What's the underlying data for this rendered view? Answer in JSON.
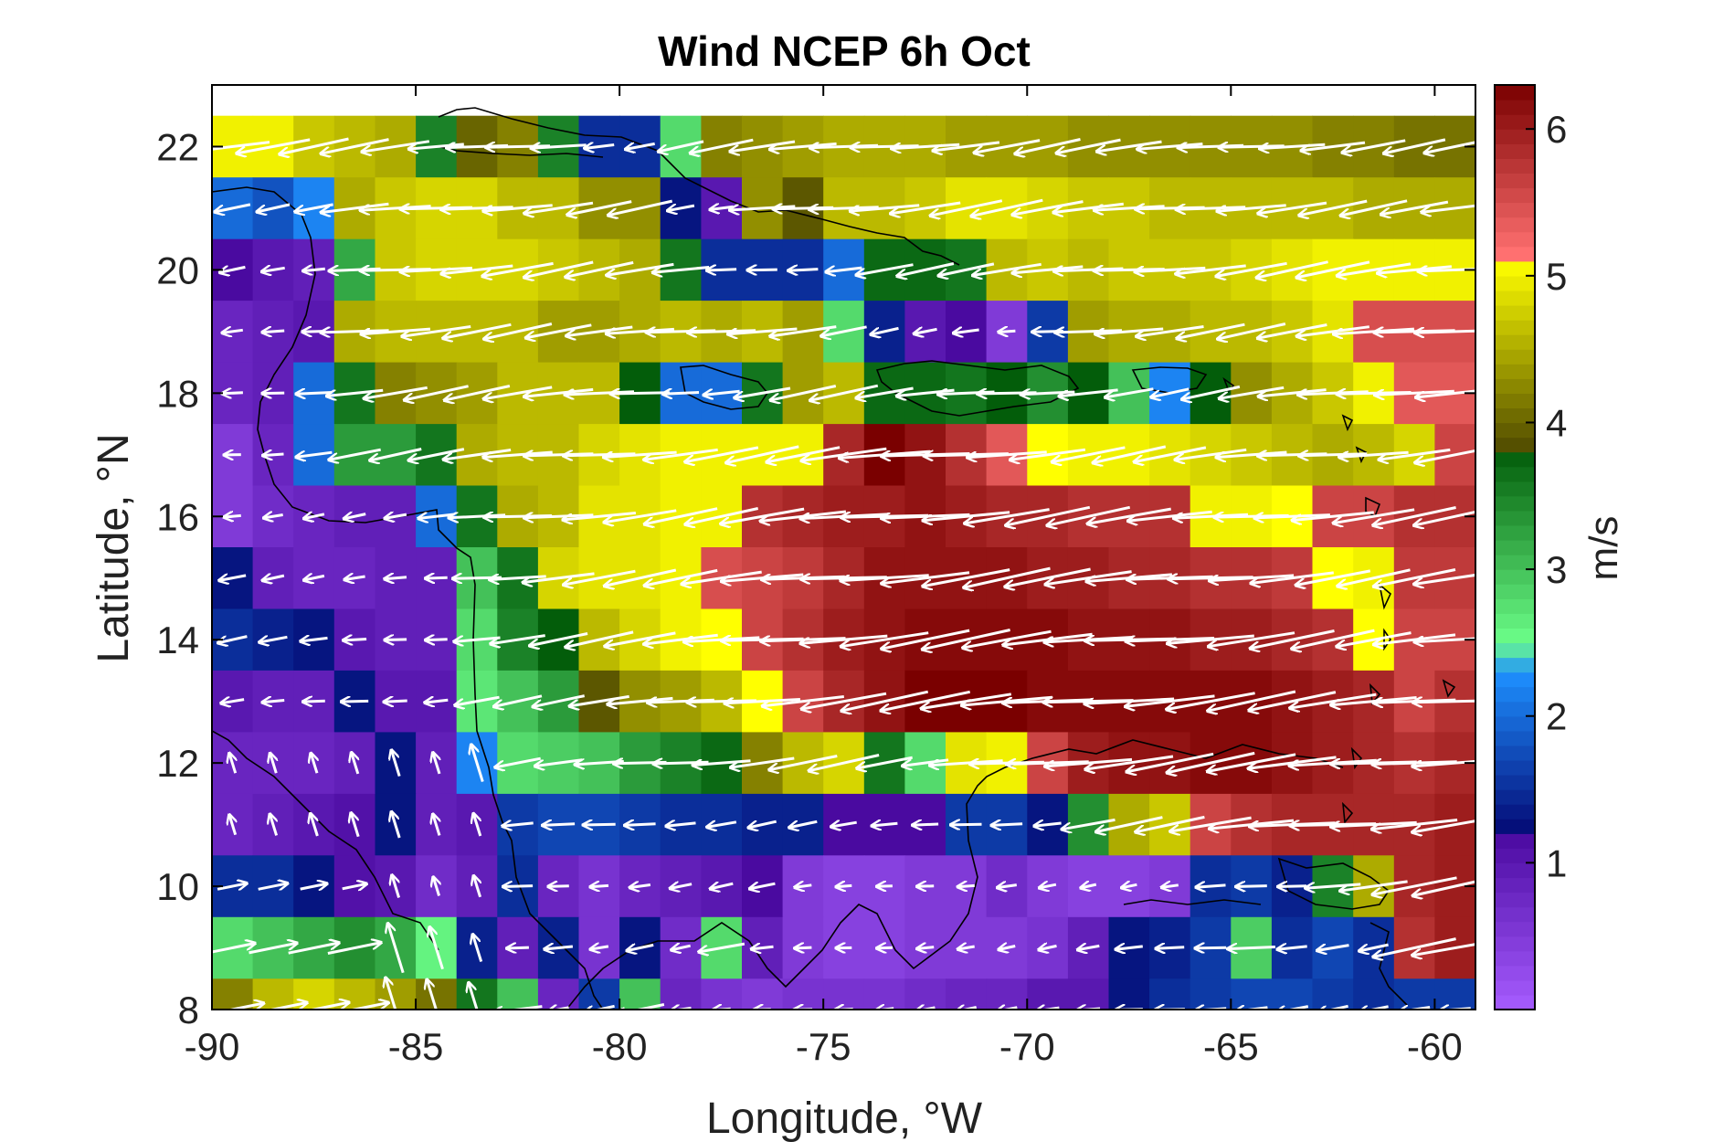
{
  "chart_data": {
    "type": "heatmap",
    "title": "Wind NCEP 6h Oct",
    "xlabel": "Longitude, °W",
    "ylabel": "Latitude, °N",
    "colorbar_label": "m/s",
    "xlim": [
      -90,
      -59
    ],
    "ylim": [
      8,
      23
    ],
    "xticks": [
      -90,
      -85,
      -80,
      -75,
      -70,
      -65,
      -60
    ],
    "xtick_labels": [
      "-90",
      "-85",
      "-80",
      "-75",
      "-70",
      "-65",
      "-60"
    ],
    "yticks": [
      8,
      10,
      12,
      14,
      16,
      18,
      20,
      22
    ],
    "ytick_labels": [
      "8",
      "10",
      "12",
      "14",
      "16",
      "18",
      "20",
      "22"
    ],
    "clim": [
      0,
      6.3
    ],
    "colorbar_ticks": [
      1,
      2,
      3,
      4,
      5,
      6
    ],
    "colorbar_tick_labels": [
      "1",
      "2",
      "3",
      "4",
      "5",
      "6"
    ],
    "colormap_stops": [
      {
        "value": 0.0,
        "color": "#a65cff"
      },
      {
        "value": 1.2,
        "color": "#4a0aa0"
      },
      {
        "value": 1.25,
        "color": "#050f7a"
      },
      {
        "value": 2.3,
        "color": "#1e90ff"
      },
      {
        "value": 2.5,
        "color": "#6cff8a"
      },
      {
        "value": 3.8,
        "color": "#035d0a"
      },
      {
        "value": 3.85,
        "color": "#555000"
      },
      {
        "value": 5.1,
        "color": "#ffff00"
      },
      {
        "value": 5.15,
        "color": "#ff7070"
      },
      {
        "value": 6.3,
        "color": "#7a0000"
      }
    ],
    "grid_lon_step": 1,
    "grid_lat_step": 1,
    "x": [
      -89.5,
      -88.5,
      -87.5,
      -86.5,
      -85.5,
      -84.5,
      -83.5,
      -82.5,
      -81.5,
      -80.5,
      -79.5,
      -78.5,
      -77.5,
      -76.5,
      -75.5,
      -74.5,
      -73.5,
      -72.5,
      -71.5,
      -70.5,
      -69.5,
      -68.5,
      -67.5,
      -66.5,
      -65.5,
      -64.5,
      -63.5,
      -62.5,
      -61.5,
      -60.5,
      -59.5
    ],
    "y": [
      22,
      21,
      20,
      19,
      18,
      17,
      16,
      15,
      14,
      13,
      12,
      11,
      10,
      9,
      8
    ],
    "values": [
      [
        5.0,
        5.0,
        4.7,
        4.6,
        4.5,
        3.5,
        4.0,
        4.2,
        3.5,
        1.5,
        1.5,
        2.8,
        4.2,
        4.3,
        4.4,
        4.5,
        4.5,
        4.5,
        4.4,
        4.4,
        4.4,
        4.3,
        4.3,
        4.3,
        4.3,
        4.3,
        4.3,
        4.2,
        4.2,
        4.1,
        4.1
      ],
      [
        2.0,
        1.8,
        2.2,
        4.5,
        4.7,
        4.8,
        4.8,
        4.6,
        4.6,
        4.3,
        4.3,
        1.3,
        1.0,
        4.3,
        3.9,
        4.6,
        4.6,
        4.7,
        4.9,
        4.9,
        4.8,
        4.7,
        4.7,
        4.6,
        4.6,
        4.6,
        4.6,
        4.6,
        4.5,
        4.5,
        4.5
      ],
      [
        1.2,
        1.0,
        0.9,
        3.2,
        4.7,
        4.8,
        4.8,
        4.8,
        4.7,
        4.6,
        4.5,
        3.6,
        1.5,
        1.5,
        1.5,
        2.0,
        3.7,
        3.7,
        3.6,
        4.6,
        4.7,
        4.6,
        4.7,
        4.7,
        4.7,
        4.8,
        4.9,
        5.0,
        5.0,
        5.0,
        5.0
      ],
      [
        0.8,
        0.9,
        1.0,
        4.5,
        4.6,
        4.6,
        4.6,
        4.6,
        4.4,
        4.4,
        4.5,
        4.6,
        4.5,
        4.6,
        4.4,
        2.8,
        1.4,
        1.0,
        1.2,
        0.5,
        1.6,
        4.4,
        4.5,
        4.5,
        4.6,
        4.6,
        4.7,
        4.9,
        5.5,
        5.5,
        5.5
      ],
      [
        0.8,
        0.9,
        2.0,
        3.6,
        4.2,
        4.3,
        4.4,
        4.6,
        4.6,
        4.6,
        3.8,
        2.0,
        2.0,
        3.6,
        4.4,
        4.6,
        3.7,
        3.7,
        3.6,
        3.8,
        3.4,
        3.8,
        3.0,
        2.2,
        3.8,
        4.3,
        4.5,
        4.7,
        5.0,
        5.4,
        5.4
      ],
      [
        0.5,
        0.8,
        2.0,
        3.3,
        3.3,
        3.6,
        4.5,
        4.6,
        4.6,
        4.8,
        4.9,
        5.0,
        5.0,
        5.0,
        5.0,
        5.9,
        6.3,
        6.1,
        5.8,
        5.4,
        5.1,
        5.0,
        5.0,
        4.9,
        4.8,
        4.7,
        4.6,
        4.5,
        4.6,
        4.8,
        5.6
      ],
      [
        0.5,
        0.7,
        0.8,
        0.9,
        0.9,
        2.0,
        3.6,
        4.5,
        4.6,
        4.9,
        4.9,
        5.0,
        5.0,
        5.8,
        5.9,
        6.0,
        6.0,
        6.1,
        6.0,
        5.9,
        5.9,
        5.8,
        5.8,
        5.8,
        5.0,
        5.0,
        5.1,
        5.6,
        5.6,
        5.8,
        5.8
      ],
      [
        1.3,
        0.9,
        0.8,
        0.8,
        0.9,
        0.9,
        3.0,
        3.6,
        4.8,
        4.9,
        4.9,
        5.0,
        5.5,
        5.6,
        5.7,
        5.9,
        6.1,
        6.1,
        6.1,
        6.1,
        6.0,
        6.0,
        5.9,
        5.9,
        5.8,
        5.8,
        5.7,
        5.1,
        5.0,
        5.7,
        5.7
      ],
      [
        1.5,
        1.4,
        1.3,
        1.0,
        0.9,
        0.9,
        2.8,
        3.5,
        3.8,
        4.6,
        4.8,
        5.0,
        5.1,
        5.6,
        5.8,
        6.0,
        6.1,
        6.2,
        6.2,
        6.2,
        6.2,
        6.1,
        6.1,
        6.1,
        6.0,
        6.0,
        5.9,
        5.8,
        5.1,
        5.6,
        5.6
      ],
      [
        1.0,
        0.9,
        0.9,
        1.3,
        1.0,
        1.0,
        2.7,
        3.0,
        3.3,
        3.9,
        4.3,
        4.4,
        4.6,
        5.1,
        5.6,
        5.9,
        6.1,
        6.3,
        6.3,
        6.3,
        6.2,
        6.2,
        6.2,
        6.2,
        6.2,
        6.2,
        6.1,
        6.0,
        5.9,
        5.6,
        5.8
      ],
      [
        0.8,
        0.8,
        0.8,
        0.9,
        1.3,
        0.9,
        2.2,
        2.8,
        2.9,
        3.0,
        3.3,
        3.5,
        3.7,
        4.2,
        4.6,
        4.8,
        3.6,
        2.8,
        4.9,
        5.0,
        5.6,
        6.0,
        6.1,
        6.1,
        6.2,
        6.2,
        6.1,
        6.0,
        5.9,
        5.8,
        5.9
      ],
      [
        0.8,
        0.9,
        1.0,
        1.1,
        1.3,
        0.9,
        1.0,
        1.6,
        1.7,
        1.7,
        1.6,
        1.5,
        1.5,
        1.4,
        1.4,
        1.2,
        1.2,
        1.2,
        1.6,
        1.6,
        1.3,
        3.4,
        4.5,
        4.7,
        5.6,
        5.8,
        5.9,
        5.9,
        5.9,
        5.9,
        6.0
      ],
      [
        1.5,
        1.5,
        1.3,
        1.1,
        1.0,
        0.7,
        0.9,
        1.5,
        0.8,
        0.6,
        0.8,
        0.9,
        1.0,
        1.2,
        0.5,
        0.4,
        0.4,
        0.5,
        0.5,
        0.7,
        0.5,
        0.4,
        0.4,
        0.5,
        1.5,
        1.6,
        1.4,
        3.5,
        4.5,
        5.9,
        6.0
      ],
      [
        2.8,
        3.0,
        3.2,
        3.4,
        3.2,
        2.6,
        1.4,
        0.9,
        1.4,
        0.6,
        1.3,
        0.7,
        2.8,
        0.9,
        0.5,
        0.4,
        0.4,
        0.5,
        0.5,
        0.5,
        0.6,
        0.9,
        1.3,
        1.4,
        1.6,
        2.9,
        1.5,
        1.7,
        1.5,
        5.8,
        6.0
      ],
      [
        4.2,
        4.6,
        4.8,
        4.6,
        4.4,
        4.1,
        3.6,
        3.0,
        0.8,
        1.6,
        3.0,
        0.8,
        0.6,
        0.5,
        0.6,
        0.6,
        0.6,
        0.7,
        0.8,
        0.8,
        1.0,
        1.0,
        1.3,
        1.5,
        1.6,
        1.7,
        1.7,
        1.6,
        1.5,
        1.6,
        1.6
      ]
    ],
    "vectors": {
      "u_direction": "mostly westward (easterly trade winds)",
      "note": "white wind arrows drawn on each grid cell, length proportional to speed"
    }
  }
}
